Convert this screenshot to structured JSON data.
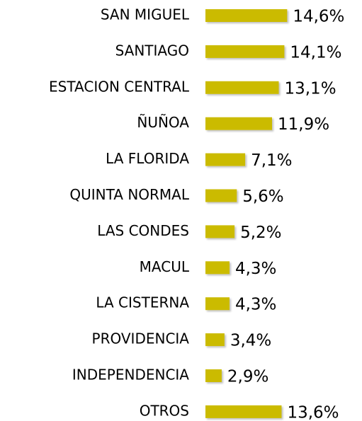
{
  "chart_data": {
    "type": "bar",
    "orientation": "horizontal",
    "categories": [
      "SAN MIGUEL",
      "SANTIAGO",
      "ESTACION CENTRAL",
      "ÑUÑOA",
      "LA FLORIDA",
      "QUINTA NORMAL",
      "LAS CONDES",
      "MACUL",
      "LA CISTERNA",
      "PROVIDENCIA",
      "INDEPENDENCIA",
      "OTROS"
    ],
    "values": [
      14.6,
      14.1,
      13.1,
      11.9,
      7.1,
      5.6,
      5.2,
      4.3,
      4.3,
      3.4,
      2.9,
      13.6
    ],
    "value_labels": [
      "14,6%",
      "14,1%",
      "13,1%",
      "11,9%",
      "7,1%",
      "5,6%",
      "5,2%",
      "4,3%",
      "4,3%",
      "3,4%",
      "2,9%",
      "13,6%"
    ],
    "color": "#cbbb00"
  }
}
